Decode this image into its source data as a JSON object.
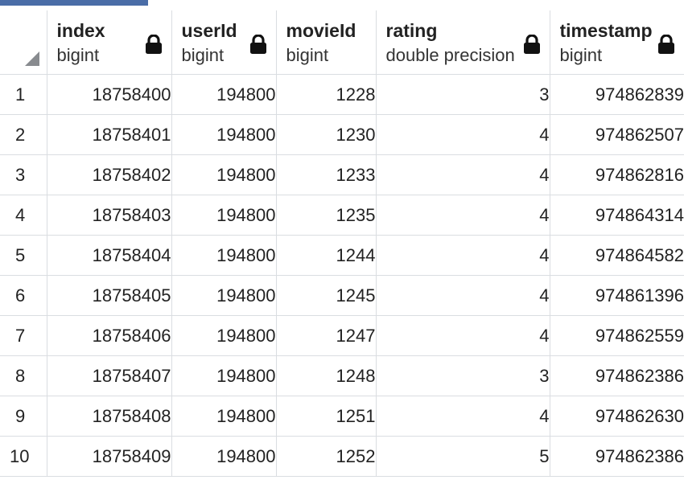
{
  "theme": {
    "accent": "#4a6da7",
    "grid_line": "#dadde1",
    "lock_color": "#111111"
  },
  "columns": [
    {
      "name": "index",
      "type": "bigint",
      "icon": "lock-icon"
    },
    {
      "name": "userId",
      "type": "bigint",
      "icon": "lock-icon"
    },
    {
      "name": "movieId",
      "type": "bigint",
      "icon": "lock-icon"
    },
    {
      "name": "rating",
      "type": "double precision",
      "icon": "lock-icon"
    },
    {
      "name": "timestamp",
      "type": "bigint",
      "icon": "lock-icon"
    }
  ],
  "rows": [
    {
      "num": "1",
      "cells": [
        "18758400",
        "194800",
        "1228",
        "3",
        "974862839"
      ]
    },
    {
      "num": "2",
      "cells": [
        "18758401",
        "194800",
        "1230",
        "4",
        "974862507"
      ]
    },
    {
      "num": "3",
      "cells": [
        "18758402",
        "194800",
        "1233",
        "4",
        "974862816"
      ]
    },
    {
      "num": "4",
      "cells": [
        "18758403",
        "194800",
        "1235",
        "4",
        "974864314"
      ]
    },
    {
      "num": "5",
      "cells": [
        "18758404",
        "194800",
        "1244",
        "4",
        "974864582"
      ]
    },
    {
      "num": "6",
      "cells": [
        "18758405",
        "194800",
        "1245",
        "4",
        "974861396"
      ]
    },
    {
      "num": "7",
      "cells": [
        "18758406",
        "194800",
        "1247",
        "4",
        "974862559"
      ]
    },
    {
      "num": "8",
      "cells": [
        "18758407",
        "194800",
        "1248",
        "3",
        "974862386"
      ]
    },
    {
      "num": "9",
      "cells": [
        "18758408",
        "194800",
        "1251",
        "4",
        "974862630"
      ]
    },
    {
      "num": "10",
      "cells": [
        "18758409",
        "194800",
        "1252",
        "5",
        "974862386"
      ]
    }
  ]
}
